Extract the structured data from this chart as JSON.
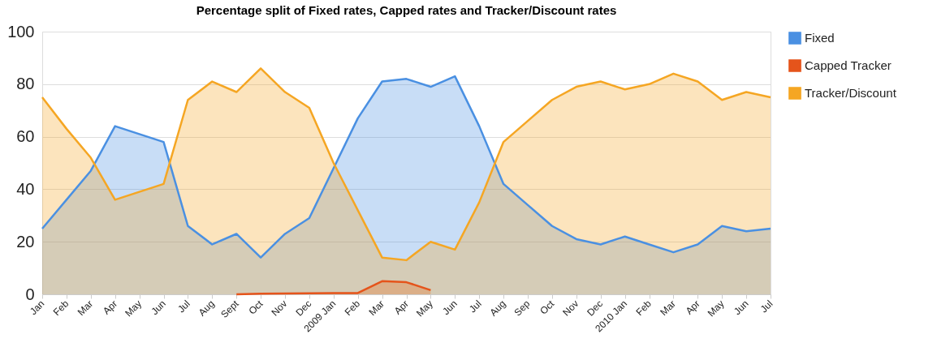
{
  "chart_data": {
    "type": "area",
    "title": "Percentage split of Fixed rates, Capped rates and Tracker/Discount rates",
    "categories": [
      "Jan",
      "Feb",
      "Mar",
      "Apr",
      "May",
      "Jun",
      "Jul",
      "Aug",
      "Sept",
      "Oct",
      "Nov",
      "Dec",
      "2009 Jan",
      "Feb",
      "Mar",
      "Apr",
      "May",
      "Jun",
      "Jul",
      "Aug",
      "Sep",
      "Oct",
      "Nov",
      "Dec",
      "2010 Jan",
      "Feb",
      "Mar",
      "Apr",
      "May",
      "Jun",
      "Jul"
    ],
    "series": [
      {
        "name": "Fixed",
        "color": "#4a90e2",
        "values": [
          25,
          36,
          47,
          64,
          61,
          58,
          26,
          19,
          23,
          14,
          23,
          29,
          48,
          67,
          81,
          82,
          79,
          83,
          64,
          42,
          34,
          26,
          21,
          19,
          22,
          19,
          16,
          19,
          26,
          24,
          25
        ]
      },
      {
        "name": "Capped Tracker",
        "color": "#e5541b",
        "values": [
          null,
          null,
          null,
          null,
          null,
          null,
          null,
          null,
          0,
          0.2,
          0.3,
          0.4,
          0.5,
          0.5,
          5,
          4.6,
          1.6,
          null,
          null,
          null,
          null,
          null,
          null,
          null,
          null,
          null,
          null,
          null,
          null,
          null,
          null
        ]
      },
      {
        "name": "Tracker/Discount",
        "color": "#f5a623",
        "values": [
          75,
          63,
          52,
          36,
          39,
          42,
          74,
          81,
          77,
          86,
          77,
          71,
          50,
          32,
          14,
          13,
          20,
          17,
          35,
          58,
          66,
          74,
          79,
          81,
          78,
          80,
          84,
          81,
          74,
          77,
          75
        ]
      }
    ],
    "ylim": [
      0,
      100
    ],
    "yticks": [
      0,
      20,
      40,
      60,
      80,
      100
    ],
    "grid": "y",
    "legend": "right"
  }
}
